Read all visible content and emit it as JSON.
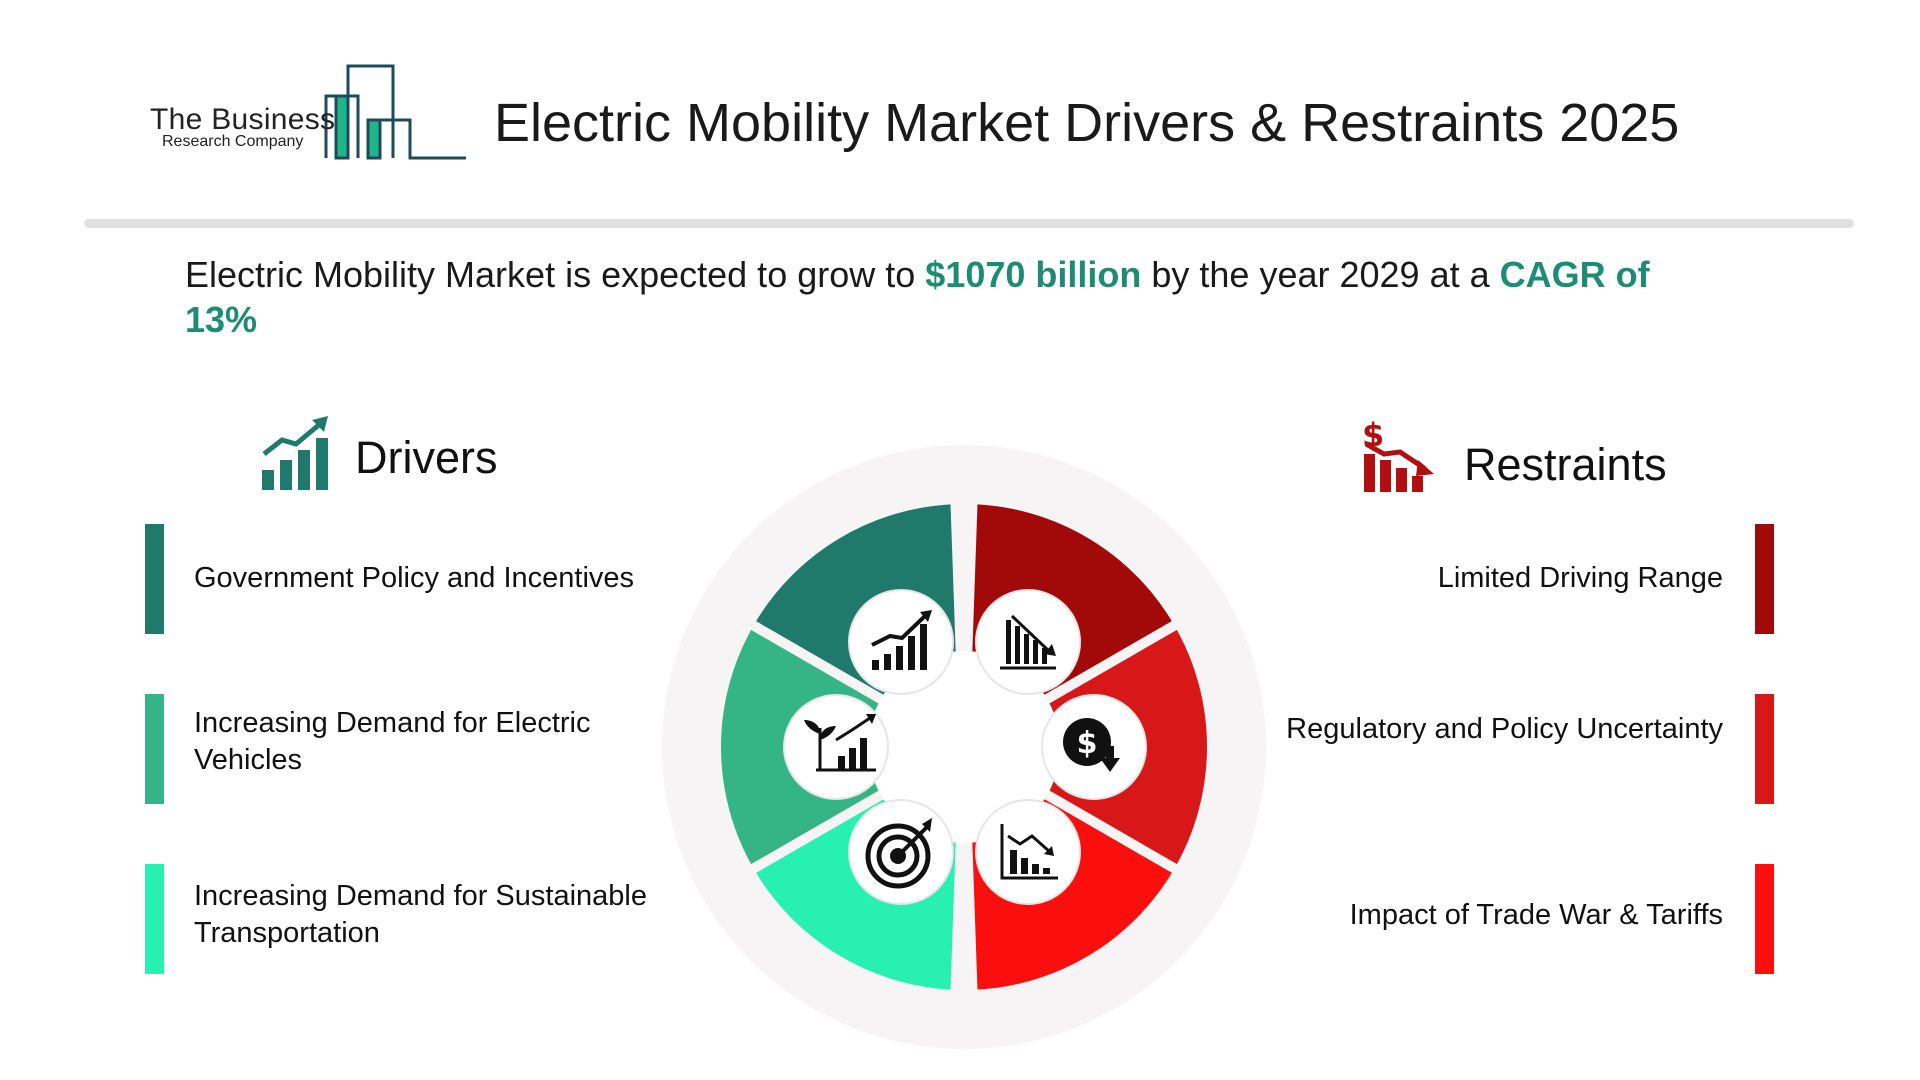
{
  "logo": {
    "name_line1": "The Business",
    "name_line2": "Research Company"
  },
  "header": {
    "title": "Electric Mobility Market Drivers & Restraints 2025"
  },
  "summary": {
    "prefix": "Electric Mobility Market is expected to grow to ",
    "value": "$1070 billion",
    "middle": " by the year 2029 at a ",
    "cagr": "CAGR of 13%"
  },
  "drivers": {
    "heading": "Drivers",
    "items": [
      {
        "label": "Government Policy and Incentives",
        "color": "#1f7a6b"
      },
      {
        "label": "Increasing Demand for Electric Vehicles",
        "color": "#35b587"
      },
      {
        "label": "Increasing Demand for Sustainable Transportation",
        "color": "#27f0b0"
      }
    ]
  },
  "restraints": {
    "heading": "Restraints",
    "items": [
      {
        "label": "Limited Driving Range",
        "color": "#a20a0a"
      },
      {
        "label": "Regulatory and Policy Uncertainty",
        "color": "#d81818"
      },
      {
        "label": "Impact of Trade War & Tariffs",
        "color": "#fa0e0e"
      }
    ]
  },
  "colors": {
    "accent": "#1e8c74",
    "logo_green": "#1fb58a",
    "logo_dark": "#1f4a5a",
    "ring_bg": "#f6f4f4",
    "restraint_icon": "#b01010"
  },
  "diagram_icons": [
    "growth-chart-icon",
    "declining-bar-chart-icon",
    "plant-growth-chart-icon",
    "dollar-down-icon",
    "target-icon",
    "downtrend-chart-icon"
  ]
}
